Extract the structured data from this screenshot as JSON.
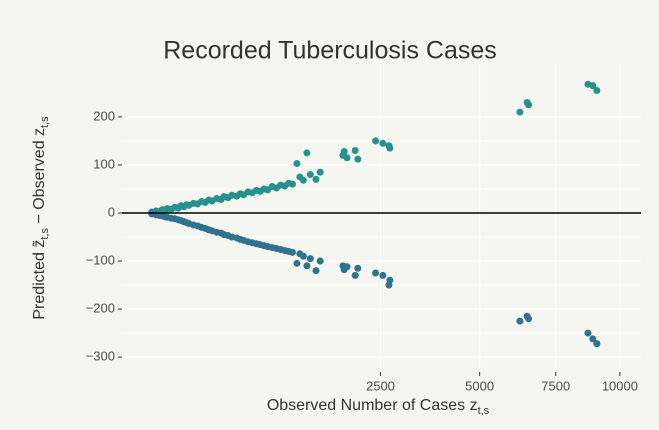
{
  "chart_data": {
    "type": "scatter",
    "title": "Recorded Tuberculosis Cases",
    "x_label": {
      "text": "Observed Number of Cases z",
      "subscript": "t,s"
    },
    "y_label": {
      "parts": [
        "Predicted ",
        "z̃",
        "t,s",
        " − Observed z",
        "t,s"
      ]
    },
    "x_scale": "sqrt",
    "xlim": [
      0,
      10900
    ],
    "ylim": [
      -331,
      308
    ],
    "xticks": [
      2500,
      5000,
      7500,
      10000
    ],
    "yticks": [
      -300,
      -200,
      -100,
      0,
      100,
      200
    ],
    "yticks_labels": [
      "−300",
      "−200",
      "−100",
      "0",
      "100",
      "200"
    ],
    "hline": 0,
    "grid": true,
    "series": [
      {
        "color": "#25928c",
        "x": [
          5,
          10,
          15,
          20,
          25,
          30,
          40,
          50,
          60,
          70,
          80,
          90,
          100,
          120,
          140,
          160,
          180,
          200,
          220,
          250,
          280,
          300,
          330,
          360,
          400,
          430,
          460,
          500,
          540,
          580,
          620,
          660,
          700,
          750,
          800,
          850,
          900,
          950,
          1000,
          1060,
          1100,
          1150,
          1200,
          1250,
          1335,
          1400,
          1778,
          1800,
          1850,
          2000,
          2050,
          2400,
          2550,
          2680,
          2700,
          6260,
          6500,
          6550,
          8710,
          8900,
          9060
        ],
        "values": [
          2,
          4,
          3,
          7,
          5,
          9,
          8,
          12,
          10,
          15,
          13,
          17,
          16,
          20,
          19,
          24,
          22,
          27,
          25,
          30,
          28,
          34,
          32,
          37,
          35,
          40,
          38,
          44,
          42,
          47,
          45,
          50,
          48,
          55,
          52,
          58,
          56,
          62,
          60,
          103,
          75,
          68,
          125,
          80,
          70,
          85,
          120,
          128,
          115,
          130,
          112,
          150,
          145,
          140,
          135,
          210,
          230,
          225,
          268,
          265,
          255
        ]
      },
      {
        "color": "#2f7390",
        "x": [
          5,
          10,
          15,
          20,
          25,
          30,
          40,
          50,
          60,
          70,
          80,
          90,
          100,
          120,
          140,
          160,
          180,
          200,
          220,
          250,
          280,
          300,
          330,
          360,
          400,
          430,
          460,
          500,
          540,
          580,
          620,
          660,
          700,
          750,
          800,
          850,
          900,
          950,
          1000,
          1060,
          1100,
          1150,
          1200,
          1250,
          1335,
          1400,
          1778,
          1800,
          1850,
          2000,
          2050,
          2400,
          2550,
          2680,
          2700,
          6260,
          6500,
          6550,
          8710,
          8900,
          9060
        ],
        "values": [
          -2,
          -4,
          -5,
          -6,
          -8,
          -9,
          -11,
          -12,
          -14,
          -16,
          -18,
          -20,
          -22,
          -25,
          -27,
          -30,
          -32,
          -35,
          -37,
          -40,
          -42,
          -45,
          -47,
          -50,
          -52,
          -55,
          -57,
          -60,
          -62,
          -64,
          -66,
          -68,
          -70,
          -72,
          -74,
          -76,
          -78,
          -80,
          -82,
          -105,
          -85,
          -90,
          -110,
          -95,
          -120,
          -100,
          -110,
          -118,
          -112,
          -130,
          -115,
          -125,
          -130,
          -150,
          -140,
          -225,
          -215,
          -220,
          -250,
          -262,
          -272
        ]
      }
    ]
  }
}
